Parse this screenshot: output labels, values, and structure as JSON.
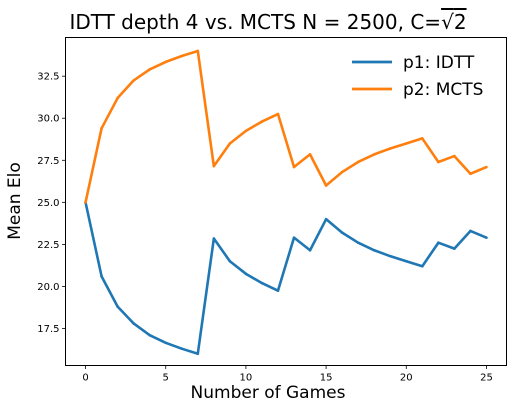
{
  "chart_data": {
    "type": "line",
    "title_prefix": "IDTT depth 4 vs. MCTS N = 2500, C=",
    "title_radicand": "2",
    "title_sqrt_symbol": "√",
    "xlabel": "Number of Games",
    "ylabel": "Mean Elo",
    "xlim": [
      -1.25,
      26.25
    ],
    "ylim": [
      15.3,
      34.8
    ],
    "xticks": [
      0,
      5,
      10,
      15,
      20,
      25
    ],
    "yticks": [
      17.5,
      20.0,
      22.5,
      25.0,
      27.5,
      30.0,
      32.5
    ],
    "xtick_labels": [
      "0",
      "5",
      "10",
      "15",
      "20",
      "25"
    ],
    "ytick_labels": [
      "17.5",
      "20.0",
      "22.5",
      "25.0",
      "27.5",
      "30.0",
      "32.5"
    ],
    "grid": false,
    "legend_position": "top-right",
    "x": [
      0,
      1,
      2,
      3,
      4,
      5,
      6,
      7,
      8,
      9,
      10,
      11,
      12,
      13,
      14,
      15,
      16,
      17,
      18,
      19,
      20,
      21,
      22,
      23,
      24,
      25
    ],
    "series": [
      {
        "name": "p1: IDTT",
        "color": "#1f77b4",
        "values": [
          25.0,
          20.6,
          18.8,
          17.8,
          17.1,
          16.65,
          16.3,
          16.0,
          22.85,
          21.5,
          20.75,
          20.2,
          19.75,
          22.9,
          22.15,
          24.0,
          23.2,
          22.6,
          22.15,
          21.8,
          21.5,
          21.2,
          22.6,
          22.25,
          23.3,
          22.9
        ]
      },
      {
        "name": "p2: MCTS",
        "color": "#ff7f0e",
        "values": [
          25.0,
          29.4,
          31.2,
          32.25,
          32.9,
          33.35,
          33.7,
          34.0,
          27.15,
          28.5,
          29.25,
          29.8,
          30.25,
          27.1,
          27.85,
          26.0,
          26.8,
          27.4,
          27.85,
          28.2,
          28.5,
          28.8,
          27.4,
          27.75,
          26.7,
          27.1
        ]
      }
    ]
  }
}
